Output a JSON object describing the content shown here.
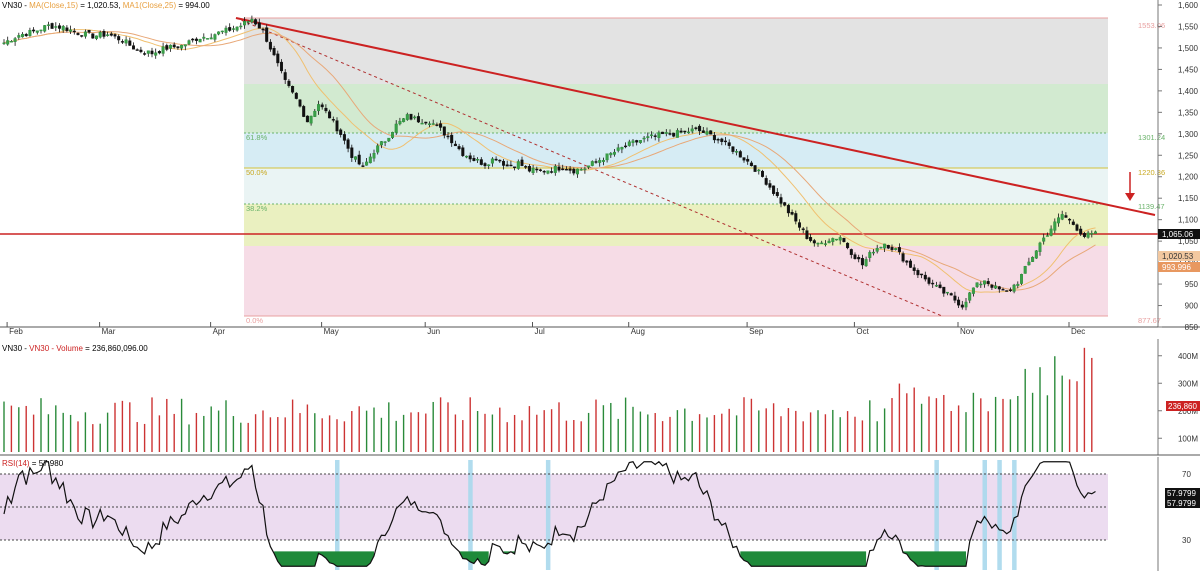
{
  "chart_data": {
    "type": "candlestick",
    "symbol": "VN30",
    "header": {
      "symbol": "VN30",
      "ma15_label": "MA(Close,15)",
      "ma15_value": "1,020.53",
      "ma25_label": "MA1(Close,25)",
      "ma25_value": "994.00"
    },
    "price_axis": {
      "ticks": [
        "1,600",
        "1,550",
        "1,500",
        "1,450",
        "1,400",
        "1,350",
        "1,300",
        "1,250",
        "1,200",
        "1,150",
        "1,100",
        "1,050",
        "1,000",
        "950",
        "900",
        "850"
      ],
      "ylim": [
        850,
        1600
      ]
    },
    "months": [
      "Feb",
      "Mar",
      "Apr",
      "May",
      "Jun",
      "Jul",
      "Aug",
      "Sep",
      "Oct",
      "Nov",
      "Dec"
    ],
    "fib_levels": [
      {
        "label": "",
        "value": "1553.06",
        "price": 1553,
        "color": "#e8a0a0"
      },
      {
        "label": "61.8%",
        "value": "1301.24",
        "price": 1301,
        "color": "#6bb36b"
      },
      {
        "label": "50.0%",
        "value": "1220.36",
        "price": 1220,
        "color": "#d4c23a"
      },
      {
        "label": "38.2%",
        "value": "1139.47",
        "price": 1139,
        "color": "#6bb36b"
      },
      {
        "label": "0.0%",
        "value": "877.67",
        "price": 878,
        "color": "#e8a0a0"
      }
    ],
    "price_labels": {
      "last": "1,065.06",
      "ma15": "1,020.53",
      "ma25": "993.996"
    },
    "close_anchors": [
      [
        0,
        1512
      ],
      [
        4,
        1530
      ],
      [
        8,
        1538
      ],
      [
        12,
        1552
      ],
      [
        16,
        1548
      ],
      [
        20,
        1535
      ],
      [
        24,
        1528
      ],
      [
        28,
        1532
      ],
      [
        32,
        1518
      ],
      [
        36,
        1495
      ],
      [
        40,
        1488
      ],
      [
        44,
        1500
      ],
      [
        48,
        1505
      ],
      [
        52,
        1522
      ],
      [
        56,
        1530
      ],
      [
        60,
        1540
      ],
      [
        64,
        1552
      ],
      [
        67,
        1568
      ],
      [
        70,
        1540
      ],
      [
        73,
        1480
      ],
      [
        76,
        1420
      ],
      [
        79,
        1380
      ],
      [
        82,
        1330
      ],
      [
        85,
        1370
      ],
      [
        88,
        1340
      ],
      [
        91,
        1300
      ],
      [
        94,
        1250
      ],
      [
        97,
        1220
      ],
      [
        100,
        1260
      ],
      [
        103,
        1285
      ],
      [
        106,
        1320
      ],
      [
        109,
        1340
      ],
      [
        112,
        1332
      ],
      [
        115,
        1330
      ],
      [
        118,
        1310
      ],
      [
        121,
        1285
      ],
      [
        124,
        1255
      ],
      [
        127,
        1240
      ],
      [
        130,
        1230
      ],
      [
        133,
        1245
      ],
      [
        136,
        1225
      ],
      [
        139,
        1232
      ],
      [
        142,
        1215
      ],
      [
        145,
        1212
      ],
      [
        148,
        1218
      ],
      [
        151,
        1222
      ],
      [
        154,
        1215
      ],
      [
        157,
        1220
      ],
      [
        160,
        1235
      ],
      [
        163,
        1248
      ],
      [
        166,
        1262
      ],
      [
        169,
        1275
      ],
      [
        172,
        1285
      ],
      [
        175,
        1292
      ],
      [
        178,
        1298
      ],
      [
        181,
        1300
      ],
      [
        184,
        1304
      ],
      [
        187,
        1310
      ],
      [
        190,
        1300
      ],
      [
        193,
        1288
      ],
      [
        196,
        1270
      ],
      [
        199,
        1250
      ],
      [
        202,
        1228
      ],
      [
        205,
        1200
      ],
      [
        208,
        1165
      ],
      [
        211,
        1130
      ],
      [
        214,
        1095
      ],
      [
        217,
        1060
      ],
      [
        220,
        1040
      ],
      [
        223,
        1055
      ],
      [
        226,
        1060
      ],
      [
        229,
        1025
      ],
      [
        232,
        995
      ],
      [
        235,
        1030
      ],
      [
        238,
        1045
      ],
      [
        241,
        1030
      ],
      [
        244,
        1000
      ],
      [
        247,
        975
      ],
      [
        250,
        955
      ],
      [
        253,
        935
      ],
      [
        256,
        920
      ],
      [
        259,
        900
      ],
      [
        262,
        940
      ],
      [
        265,
        960
      ],
      [
        268,
        940
      ],
      [
        271,
        930
      ],
      [
        274,
        955
      ],
      [
        277,
        1000
      ],
      [
        280,
        1045
      ],
      [
        283,
        1080
      ],
      [
        286,
        1112
      ],
      [
        289,
        1090
      ],
      [
        292,
        1062
      ],
      [
        295,
        1066
      ]
    ],
    "volume": {
      "label": "VN30 - Volume",
      "value": "236,860,096.00",
      "ticks": [
        "400M",
        "300M",
        "200M",
        "100M"
      ],
      "last_label": "236,860",
      "ylim": [
        50,
        450
      ]
    },
    "rsi": {
      "label": "RSI(14)",
      "value": "57.980",
      "ticks": [
        "70",
        "30"
      ],
      "last_label_1": "57.9799",
      "last_label_2": "57.9799",
      "overbought": 70,
      "oversold": 30,
      "midline": 50,
      "ylim": [
        20,
        80
      ]
    },
    "annotations": {
      "trendline_color": "#cc2222",
      "horizontal_line_price": 1065,
      "arrow_color": "#cc2222"
    }
  }
}
